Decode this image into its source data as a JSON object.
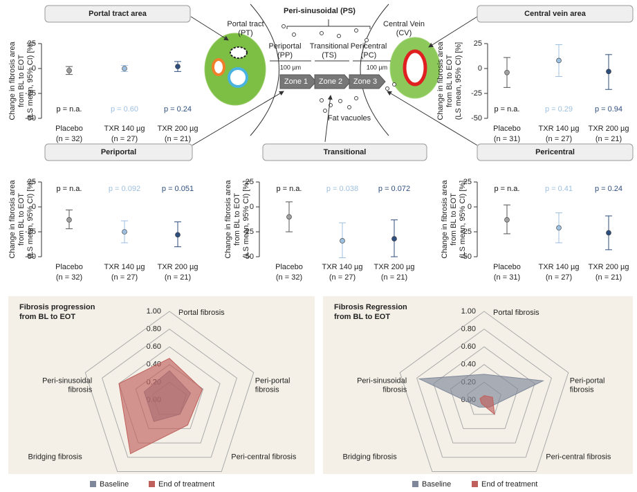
{
  "chart_data": [
    {
      "type": "errorbar",
      "title": "Portal tract area",
      "ylabel": [
        "Change in fibrosis area",
        "from BL to EOT",
        "(LS mean, 95% CI) [%]"
      ],
      "categories": [
        "Placebo",
        "TXR 140 µg",
        "TXR 200 µg"
      ],
      "sublabels": [
        "(n = 32)",
        "(n = 27)",
        "(n = 21)"
      ],
      "values": [
        -2,
        0,
        2
      ],
      "lower": [
        -6,
        -3,
        -3
      ],
      "upper": [
        2,
        3,
        7
      ],
      "colors": [
        "#a0a0a0",
        "#9dbfe0",
        "#2e4e7e"
      ],
      "p_labels": [
        "p = n.a.",
        "p = 0.60",
        "p = 0.24"
      ],
      "ylim": [
        -50,
        25
      ],
      "yticks": [
        -50,
        -25,
        0,
        25
      ]
    },
    {
      "type": "errorbar",
      "title": "Central vein area",
      "ylabel": [
        "Change in fibrosis area",
        "from BL to EOT",
        "(LS mean, 95% CI) [%]"
      ],
      "categories": [
        "Placebo",
        "TXR 140 µg",
        "TXR 200 µg"
      ],
      "sublabels": [
        "(n = 31)",
        "(n = 27)",
        "(n = 21)"
      ],
      "values": [
        -4,
        8,
        -3
      ],
      "lower": [
        -19,
        -8,
        -21
      ],
      "upper": [
        11,
        24,
        14
      ],
      "colors": [
        "#a0a0a0",
        "#9dbfe0",
        "#2e4e7e"
      ],
      "p_labels": [
        "p = n.a.",
        "p = 0.29",
        "p = 0.94"
      ],
      "ylim": [
        -50,
        25
      ],
      "yticks": [
        -50,
        -25,
        0,
        25
      ]
    },
    {
      "type": "errorbar",
      "title": "Periportal",
      "ylabel": [
        "Change in fibrosis area",
        "from BL to EOT",
        "(LS mean, 95% CI) [%]"
      ],
      "categories": [
        "Placebo",
        "TXR 140 µg",
        "TXR 200 µg"
      ],
      "sublabels": [
        "(n = 32)",
        "(n = 27)",
        "(n = 21)"
      ],
      "values": [
        -13,
        -25,
        -28
      ],
      "lower": [
        -22,
        -36,
        -40
      ],
      "upper": [
        -3,
        -14,
        -15
      ],
      "colors": [
        "#a0a0a0",
        "#9dbfe0",
        "#2e4e7e"
      ],
      "p_labels": [
        "p = n.a.",
        "p = 0.092",
        "p = 0.051"
      ],
      "ylim": [
        -50,
        25
      ],
      "yticks": [
        -50,
        -25,
        0,
        25
      ]
    },
    {
      "type": "errorbar",
      "title": "Transitional",
      "ylabel": [
        "Change in fibrosis area",
        "from BL to EOT",
        "(LS mean, 95% CI) [%]"
      ],
      "categories": [
        "Placebo",
        "TXR 140 µg",
        "TXR 200 µg"
      ],
      "sublabels": [
        "(n = 32)",
        "(n = 27)",
        "(n = 21)"
      ],
      "values": [
        -10,
        -34,
        -32
      ],
      "lower": [
        -25,
        -51,
        -50
      ],
      "upper": [
        5,
        -16,
        -13
      ],
      "colors": [
        "#a0a0a0",
        "#9dbfe0",
        "#2e4e7e"
      ],
      "p_labels": [
        "p = n.a.",
        "p = 0.038",
        "p = 0.072"
      ],
      "ylim": [
        -50,
        25
      ],
      "yticks": [
        -50,
        -25,
        0,
        25
      ]
    },
    {
      "type": "errorbar",
      "title": "Pericentral",
      "ylabel": [
        "Change in fibrosis area",
        "from BL to EOT",
        "(LS mean, 95% CI) [%]"
      ],
      "categories": [
        "Placebo",
        "TXR 140 µg",
        "TXR 200 µg"
      ],
      "sublabels": [
        "(n = 31)",
        "(n = 27)",
        "(n = 21)"
      ],
      "values": [
        -13,
        -21,
        -26
      ],
      "lower": [
        -27,
        -36,
        -43
      ],
      "upper": [
        2,
        -6,
        -9
      ],
      "colors": [
        "#a0a0a0",
        "#9dbfe0",
        "#2e4e7e"
      ],
      "p_labels": [
        "p = n.a.",
        "p = 0.41",
        "p = 0.24"
      ],
      "ylim": [
        -50,
        25
      ],
      "yticks": [
        -50,
        -25,
        0,
        25
      ]
    },
    {
      "type": "radar",
      "title": [
        "Fibrosis progression",
        "from BL to EOT"
      ],
      "categories": [
        [
          "Portal fibrosis"
        ],
        [
          "Peri-portal",
          "fibrosis"
        ],
        [
          "Peri-central fibrosis"
        ],
        [
          "Bridging fibrosis"
        ],
        [
          "Peri-sinusoidal",
          "fibrosis"
        ]
      ],
      "rlim": [
        0,
        1
      ],
      "rticks": [
        {
          "value": 0,
          "label": "0.00"
        },
        {
          "value": 0.2,
          "label": "0.20"
        },
        {
          "value": 0.4,
          "label": "0.40"
        },
        {
          "value": 0.6,
          "label": "0.60"
        },
        {
          "value": 0.8,
          "label": "0.80"
        },
        {
          "value": 1,
          "label": "1.00"
        }
      ],
      "series": [
        {
          "name": "Baseline",
          "color": "#7f889a",
          "values": [
            0.33,
            0.25,
            0.2,
            0.3,
            0.3
          ]
        },
        {
          "name": "End of treatment",
          "color": "#c0605c",
          "values": [
            0.47,
            0.39,
            0.35,
            0.75,
            0.6
          ]
        }
      ]
    },
    {
      "type": "radar",
      "title": [
        "Fibrosis Regression",
        "from BL to EOT"
      ],
      "categories": [
        [
          "Portal fibrosis"
        ],
        [
          "Peri-portal",
          "fibrosis"
        ],
        [
          "Peri-central fibrosis"
        ],
        [
          "Bridging fibrosis"
        ],
        [
          "Peri-sinusoidal",
          "fibrosis"
        ]
      ],
      "rlim": [
        0,
        1
      ],
      "rticks": [
        {
          "value": 0,
          "label": "0.00"
        },
        {
          "value": 0.2,
          "label": "0.20"
        },
        {
          "value": 0.4,
          "label": "0.40"
        },
        {
          "value": 0.6,
          "label": "0.60"
        },
        {
          "value": 0.8,
          "label": "0.80"
        },
        {
          "value": 1,
          "label": "1.00"
        }
      ],
      "series": [
        {
          "name": "Baseline",
          "color": "#7f889a",
          "values": [
            0.29,
            0.7,
            0.1,
            0.1,
            0.77
          ]
        },
        {
          "name": "End of treatment",
          "color": "#c0605c",
          "values": [
            0.05,
            0.1,
            0.2,
            0.05,
            0.05
          ]
        }
      ]
    }
  ],
  "diagram": {
    "sinusoidal": "Peri-sinusoidal (PS)",
    "portal_tract": [
      "Portal tract",
      "(PT)"
    ],
    "central_vein": [
      "Central Vein",
      "(CV)"
    ],
    "periportal": [
      "Periportal",
      "(PP)"
    ],
    "transitional": [
      "Transitional",
      "(TS)"
    ],
    "pericentral": [
      "Pericentral",
      "(PC)"
    ],
    "scale": [
      "100 µm",
      "100 µm"
    ],
    "zones": [
      "Zone 1",
      "Zone 2",
      "Zone 3"
    ],
    "fat": "Fat vacuoles"
  }
}
